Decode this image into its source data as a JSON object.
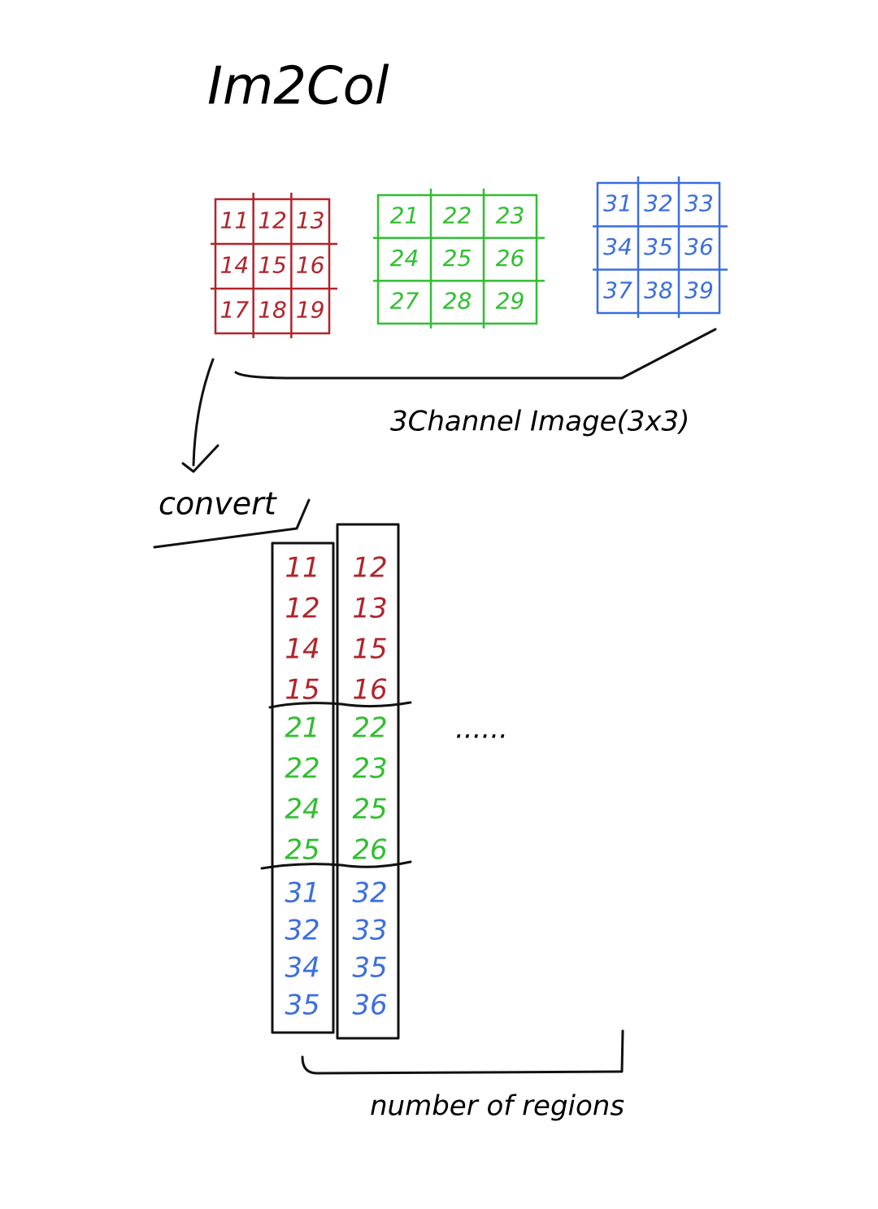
{
  "title": "Im2Col",
  "grids": [
    {
      "cells": [
        11,
        12,
        13,
        14,
        15,
        16,
        17,
        18,
        19
      ]
    },
    {
      "cells": [
        21,
        22,
        23,
        24,
        25,
        26,
        27,
        28,
        29
      ]
    },
    {
      "cells": [
        31,
        32,
        33,
        34,
        35,
        36,
        37,
        38,
        39
      ]
    }
  ],
  "grids_label": "3Channel Image(3x3)",
  "convert_label": "convert",
  "columns": [
    {
      "sections": [
        [
          11,
          12,
          14,
          15
        ],
        [
          21,
          22,
          24,
          25
        ],
        [
          31,
          32,
          34,
          35
        ]
      ]
    },
    {
      "sections": [
        [
          12,
          13,
          15,
          16
        ],
        [
          22,
          23,
          25,
          26
        ],
        [
          32,
          33,
          35,
          36
        ]
      ]
    }
  ],
  "ellipsis": "......",
  "columns_label": "number of regions"
}
